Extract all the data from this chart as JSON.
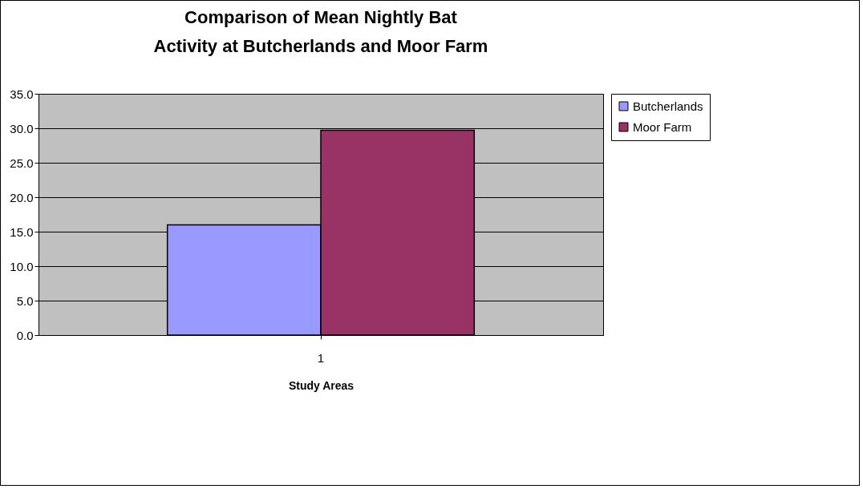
{
  "chart_data": {
    "type": "bar",
    "title": "Comparison of Mean Nightly Bat Activity at Butcherlands and Moor Farm",
    "xlabel": "Study Areas",
    "categories": [
      "1"
    ],
    "series": [
      {
        "name": "Butcherlands",
        "color": "#9999ff",
        "values": [
          16.0
        ]
      },
      {
        "name": "Moor Farm",
        "color": "#993366",
        "values": [
          29.7
        ]
      }
    ],
    "ylim": [
      0,
      35
    ],
    "yticks": [
      {
        "value": 0,
        "label": "0.0"
      },
      {
        "value": 5,
        "label": "5.0"
      },
      {
        "value": 10,
        "label": "10.0"
      },
      {
        "value": 15,
        "label": "15.0"
      },
      {
        "value": 20,
        "label": "20.0"
      },
      {
        "value": 25,
        "label": "25.0"
      },
      {
        "value": 30,
        "label": "30.0"
      },
      {
        "value": 35,
        "label": "35.0"
      }
    ],
    "grid": "y",
    "legend": "right"
  }
}
